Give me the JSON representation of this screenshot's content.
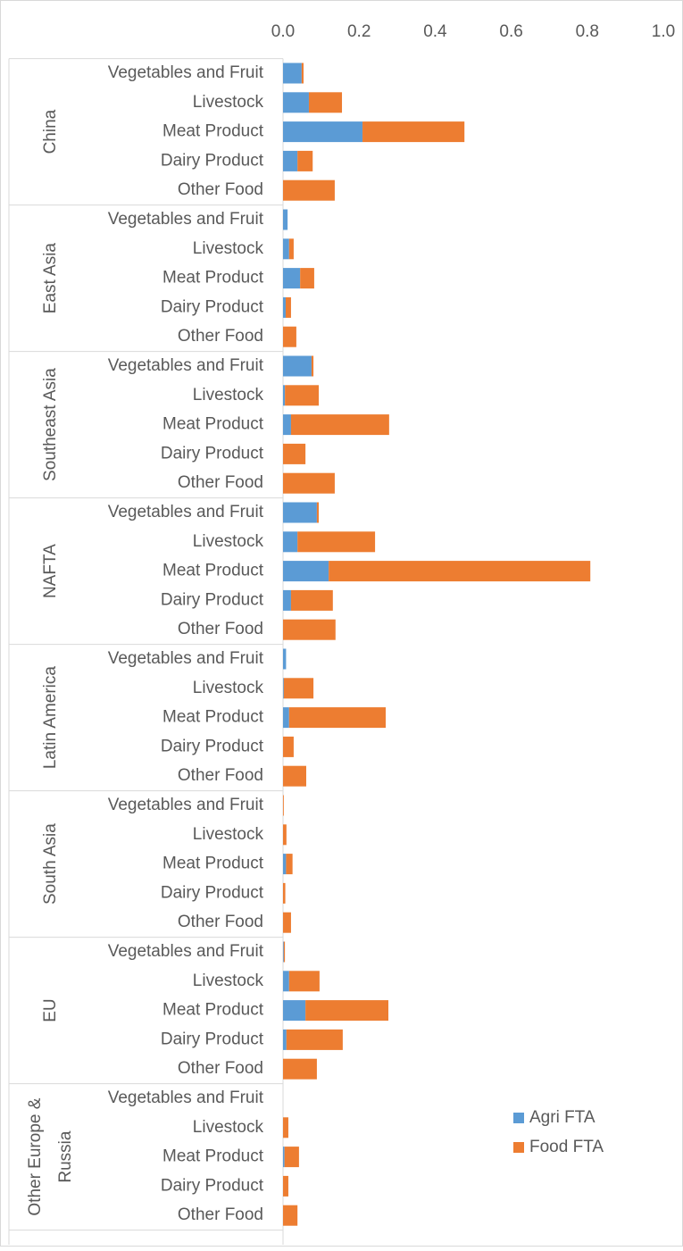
{
  "chart_data": {
    "type": "bar",
    "orientation": "horizontal",
    "stacked": true,
    "groups": [
      {
        "name": "China",
        "categories": [
          "Vegetables and Fruit",
          "Livestock",
          "Meat Product",
          "Dairy Product",
          "Other Food"
        ]
      },
      {
        "name": "East Asia",
        "categories": [
          "Vegetables and Fruit",
          "Livestock",
          "Meat Product",
          "Dairy Product",
          "Other Food"
        ]
      },
      {
        "name": "Southeast Asia",
        "categories": [
          "Vegetables and Fruit",
          "Livestock",
          "Meat Product",
          "Dairy Product",
          "Other Food"
        ]
      },
      {
        "name": "NAFTA",
        "categories": [
          "Vegetables and Fruit",
          "Livestock",
          "Meat Product",
          "Dairy Product",
          "Other Food"
        ]
      },
      {
        "name": "Latin America",
        "categories": [
          "Vegetables and Fruit",
          "Livestock",
          "Meat Product",
          "Dairy Product",
          "Other Food"
        ]
      },
      {
        "name": "South Asia",
        "categories": [
          "Vegetables and Fruit",
          "Livestock",
          "Meat Product",
          "Dairy Product",
          "Other Food"
        ]
      },
      {
        "name": "EU",
        "categories": [
          "Vegetables and Fruit",
          "Livestock",
          "Meat Product",
          "Dairy Product",
          "Other Food"
        ]
      },
      {
        "name": "Other Europe & Russia",
        "categories": [
          "Vegetables and Fruit",
          "Livestock",
          "Meat Product",
          "Dairy Product",
          "Other Food"
        ]
      }
    ],
    "series": [
      {
        "name": "Agri FTA",
        "color": "#5b9bd5",
        "values": [
          0.049,
          0.068,
          0.209,
          0.038,
          0,
          0.012,
          0.016,
          0.045,
          0.007,
          0,
          0.075,
          0.005,
          0.021,
          0,
          0,
          0.089,
          0.038,
          0.12,
          0.021,
          0,
          0.008,
          0.002,
          0.016,
          0,
          0,
          0,
          0,
          0.008,
          0,
          0,
          0.002,
          0.016,
          0.059,
          0.009,
          0,
          0,
          0,
          0.004,
          0,
          0
        ]
      },
      {
        "name": "Food FTA",
        "color": "#ed7d31",
        "values": [
          0.005,
          0.087,
          0.268,
          0.04,
          0.136,
          0,
          0.012,
          0.037,
          0.014,
          0.035,
          0.005,
          0.089,
          0.258,
          0.059,
          0.136,
          0.005,
          0.204,
          0.688,
          0.11,
          0.138,
          0,
          0.078,
          0.254,
          0.028,
          0.061,
          0.002,
          0.009,
          0.017,
          0.006,
          0.021,
          0.003,
          0.08,
          0.218,
          0.148,
          0.089,
          0,
          0.014,
          0.038,
          0.014,
          0.038
        ]
      }
    ],
    "xlim": [
      0,
      1
    ],
    "xticks": [
      {
        "value": 0,
        "label": "0.0"
      },
      0.2,
      0.4,
      0.6,
      0.8,
      {
        "value": 1,
        "label": "1.0"
      }
    ],
    "legend": "lower right"
  }
}
